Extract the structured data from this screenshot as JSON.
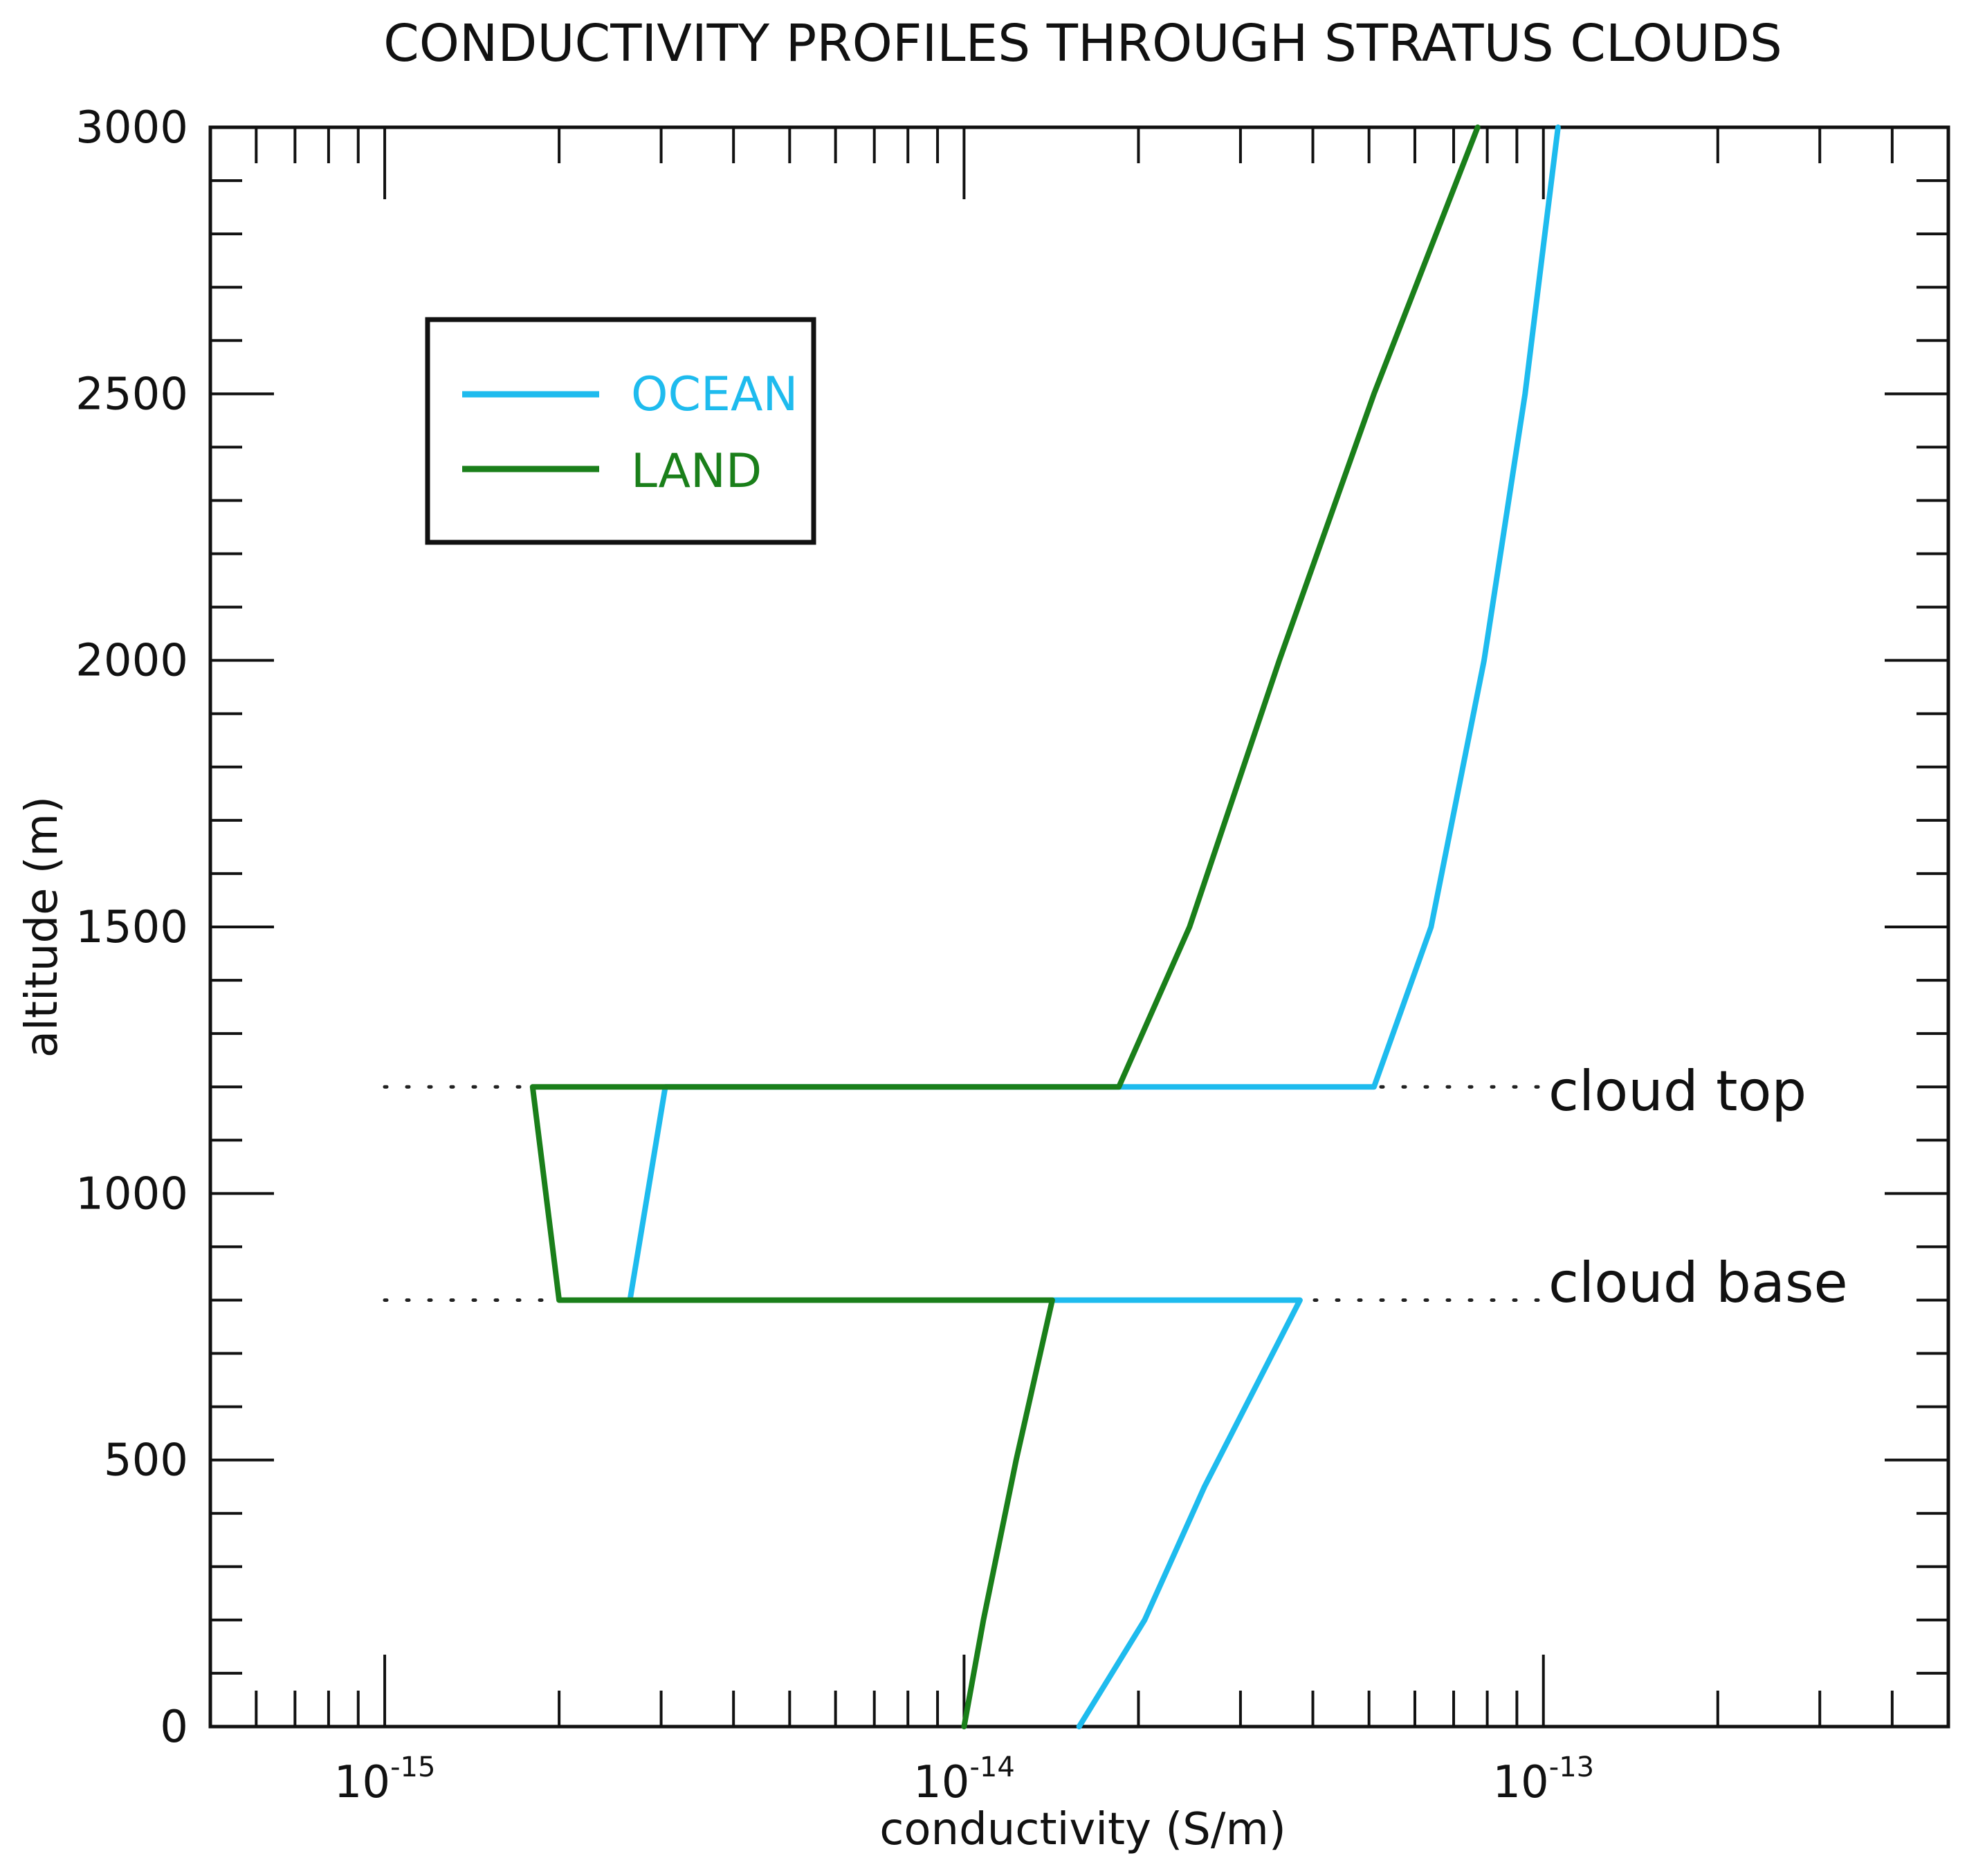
{
  "chart_data": {
    "type": "line",
    "title": "CONDUCTIVITY PROFILES THROUGH STRATUS CLOUDS",
    "xlabel": "conductivity (S/m)",
    "ylabel": "altitude (m)",
    "xscale": "log",
    "xlim": [
      5e-16,
      5e-13
    ],
    "ylim": [
      0,
      3000
    ],
    "x_ticks": [
      {
        "base": "10",
        "exp": "-15",
        "value": 1e-15
      },
      {
        "base": "10",
        "exp": "-14",
        "value": 1e-14
      },
      {
        "base": "10",
        "exp": "-13",
        "value": 1e-13
      }
    ],
    "y_ticks": [
      "0",
      "500",
      "1000",
      "1500",
      "2000",
      "2500",
      "3000"
    ],
    "grid": false,
    "legend": {
      "placement": "upper-left",
      "entries": [
        {
          "label": "OCEAN",
          "color": "#1EBBEE"
        },
        {
          "label": "LAND",
          "color": "#1A7F1A"
        }
      ]
    },
    "series": [
      {
        "name": "OCEAN",
        "color": "#1EBBEE",
        "points": [
          [
            1.58e-14,
            0
          ],
          [
            2.05e-14,
            200
          ],
          [
            2.6e-14,
            450
          ],
          [
            3.8e-14,
            800
          ],
          [
            1.4e-14,
            800
          ],
          [
            2.65e-15,
            800
          ],
          [
            3.05e-15,
            1200
          ],
          [
            1.85e-14,
            1200
          ],
          [
            5.1e-14,
            1200
          ],
          [
            6.4e-14,
            1500
          ],
          [
            7.9e-14,
            2000
          ],
          [
            9.3e-14,
            2500
          ],
          [
            1.06e-13,
            3000
          ]
        ]
      },
      {
        "name": "LAND",
        "color": "#1A7F1A",
        "points": [
          [
            1e-14,
            0
          ],
          [
            1.08e-14,
            200
          ],
          [
            1.23e-14,
            500
          ],
          [
            1.42e-14,
            800
          ],
          [
            2e-15,
            800
          ],
          [
            1.8e-15,
            1200
          ],
          [
            1.85e-14,
            1200
          ],
          [
            2.45e-14,
            1500
          ],
          [
            3.5e-14,
            2000
          ],
          [
            5.1e-14,
            2500
          ],
          [
            7.7e-14,
            3000
          ]
        ]
      }
    ],
    "reference_lines": [
      {
        "label": "cloud top",
        "y": 1200,
        "style": "dotted"
      },
      {
        "label": "cloud base",
        "y": 800,
        "style": "dotted"
      }
    ]
  }
}
